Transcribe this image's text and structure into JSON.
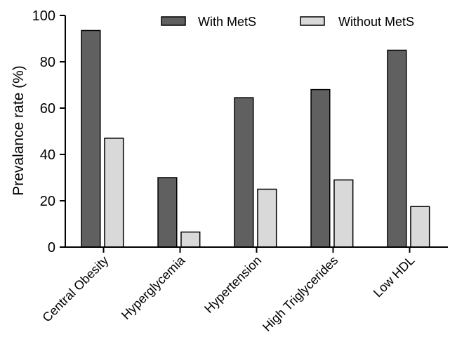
{
  "chart_data": {
    "type": "bar",
    "title": "",
    "xlabel": "",
    "ylabel": "Prevalance rate  (%)",
    "ylim": [
      0,
      100
    ],
    "yticks": [
      0,
      20,
      40,
      60,
      80,
      100
    ],
    "categories": [
      "Central Obesity",
      "Hyperglycemia",
      "Hypertension",
      "High Triglycerides",
      "Low HDL"
    ],
    "series": [
      {
        "name": "With MetS",
        "values": [
          93.5,
          30,
          64.5,
          68,
          85
        ],
        "color": "#606060"
      },
      {
        "name": "Without MetS",
        "values": [
          47,
          6.5,
          25,
          29,
          17.5
        ],
        "color": "#d9d9d9"
      }
    ],
    "legend_position": "top-right",
    "grid": false
  }
}
